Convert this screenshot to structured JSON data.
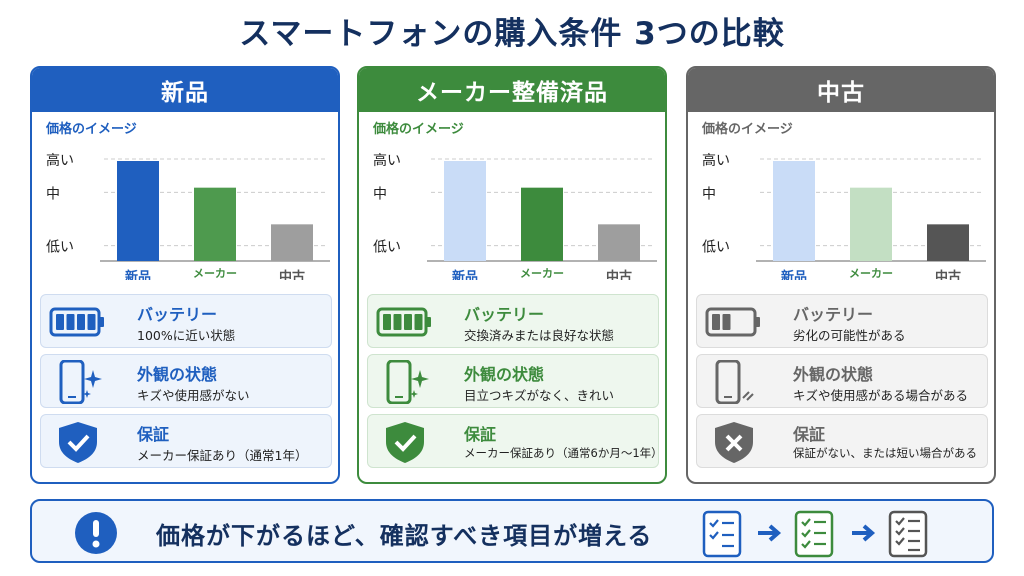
{
  "title": "スマートフォンの購入条件 3つの比較",
  "chart_common": {
    "title": "価格のイメージ",
    "ylabels": [
      "高い",
      "中",
      "低い"
    ]
  },
  "columns": [
    {
      "name": "新品",
      "accent": "#1f5fbf",
      "bar_colors": [
        "#1f5fbf",
        "#4e9a4e",
        "#9e9e9e"
      ],
      "features": [
        {
          "title": "バッテリー",
          "desc": "100%に近い状態",
          "icon": "battery-full-icon"
        },
        {
          "title": "外観の状態",
          "desc": "キズや使用感がない",
          "icon": "phone-sparkle-icon"
        },
        {
          "title": "保証",
          "desc": "メーカー保証あり（通常1年）",
          "icon": "shield-check-icon"
        }
      ]
    },
    {
      "name": "メーカー整備済品",
      "accent": "#3d8b3d",
      "bar_colors": [
        "#c9dcf7",
        "#3d8b3d",
        "#9e9e9e"
      ],
      "features": [
        {
          "title": "バッテリー",
          "desc": "交換済みまたは良好な状態",
          "icon": "battery-full-icon"
        },
        {
          "title": "外観の状態",
          "desc": "目立つキズがなく、きれい",
          "icon": "phone-sparkle-icon"
        },
        {
          "title": "保証",
          "desc": "メーカー保証あり（通常6か月～1年）",
          "icon": "shield-check-icon"
        }
      ]
    },
    {
      "name": "中古",
      "accent": "#666666",
      "bar_colors": [
        "#c9dcf7",
        "#c3dfc3",
        "#555555"
      ],
      "features": [
        {
          "title": "バッテリー",
          "desc": "劣化の可能性がある",
          "icon": "battery-low-icon"
        },
        {
          "title": "外観の状態",
          "desc": "キズや使用感がある場合がある",
          "icon": "phone-scratch-icon"
        },
        {
          "title": "保証",
          "desc": "保証がない、または短い場合がある",
          "icon": "shield-x-icon"
        }
      ]
    }
  ],
  "chart_data": {
    "type": "bar",
    "title": "価格のイメージ",
    "categories": [
      "新品",
      "メーカー整備済品",
      "中古"
    ],
    "y_tick_labels": [
      "低い",
      "中",
      "高い"
    ],
    "values": [
      3,
      2.2,
      1.1
    ],
    "ylim": [
      0,
      3
    ]
  },
  "bottom": {
    "text": "価格が下がるほど、確認すべき項目が増える",
    "icons": [
      "exclamation-icon",
      "checklist-icon",
      "arrow-right-icon"
    ]
  }
}
